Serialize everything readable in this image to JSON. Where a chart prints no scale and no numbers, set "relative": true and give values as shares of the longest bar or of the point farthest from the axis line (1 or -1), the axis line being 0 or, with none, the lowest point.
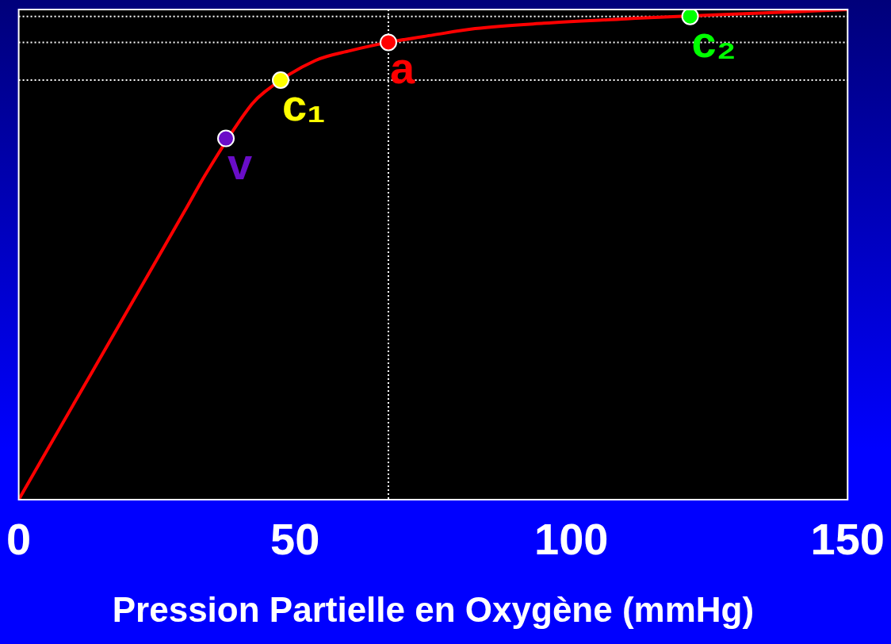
{
  "chart_data": {
    "type": "line",
    "xlabel": "Pression Partielle en Oxygène (mmHg)",
    "relative": true,
    "xlim": [
      0,
      150
    ],
    "xticks": [
      0,
      50,
      100,
      150
    ],
    "grid": false,
    "legend": false,
    "series": [
      {
        "type": "line",
        "color": "#ff0000",
        "marker": "none",
        "x": [
          0,
          10,
          20,
          30,
          34,
          42.2,
          44.5,
          53.7,
          60,
          66.9,
          75,
          82.6,
          95,
          110,
          115,
          135,
          150
        ],
        "values": [
          0,
          0.196,
          0.392,
          0.588,
          0.667,
          0.807,
          0.832,
          0.896,
          0.916,
          0.933,
          0.948,
          0.961,
          0.972,
          0.981,
          0.984,
          0.993,
          1
        ]
      },
      {
        "type": "scatter",
        "name": "v",
        "color": "#6a0dc8",
        "marker": "circle",
        "x": [
          37.5
        ],
        "values": [
          0.737
        ]
      },
      {
        "type": "scatter",
        "name": "c₁",
        "color": "#ffff00",
        "marker": "circle",
        "x": [
          47.4
        ],
        "values": [
          0.856
        ]
      },
      {
        "type": "scatter",
        "name": "a",
        "color": "#ff0000",
        "marker": "circle",
        "x": [
          66.9
        ],
        "values": [
          0.933
        ]
      },
      {
        "type": "scatter",
        "name": "c₂",
        "color": "#00ff00",
        "marker": "circle",
        "x": [
          121.5
        ],
        "values": [
          0.986
        ]
      }
    ],
    "ref_lines": [
      {
        "axis": "y",
        "value": 0.986,
        "line_style": "dotted",
        "color": "#ffffff"
      },
      {
        "axis": "y",
        "value": 0.933,
        "line_style": "dotted",
        "color": "#ffffff"
      },
      {
        "axis": "y",
        "value": 0.856,
        "line_style": "dotted",
        "color": "#ffffff"
      },
      {
        "axis": "x",
        "value": 66.9,
        "line_style": "dotted",
        "color": "#ffffff"
      }
    ]
  }
}
